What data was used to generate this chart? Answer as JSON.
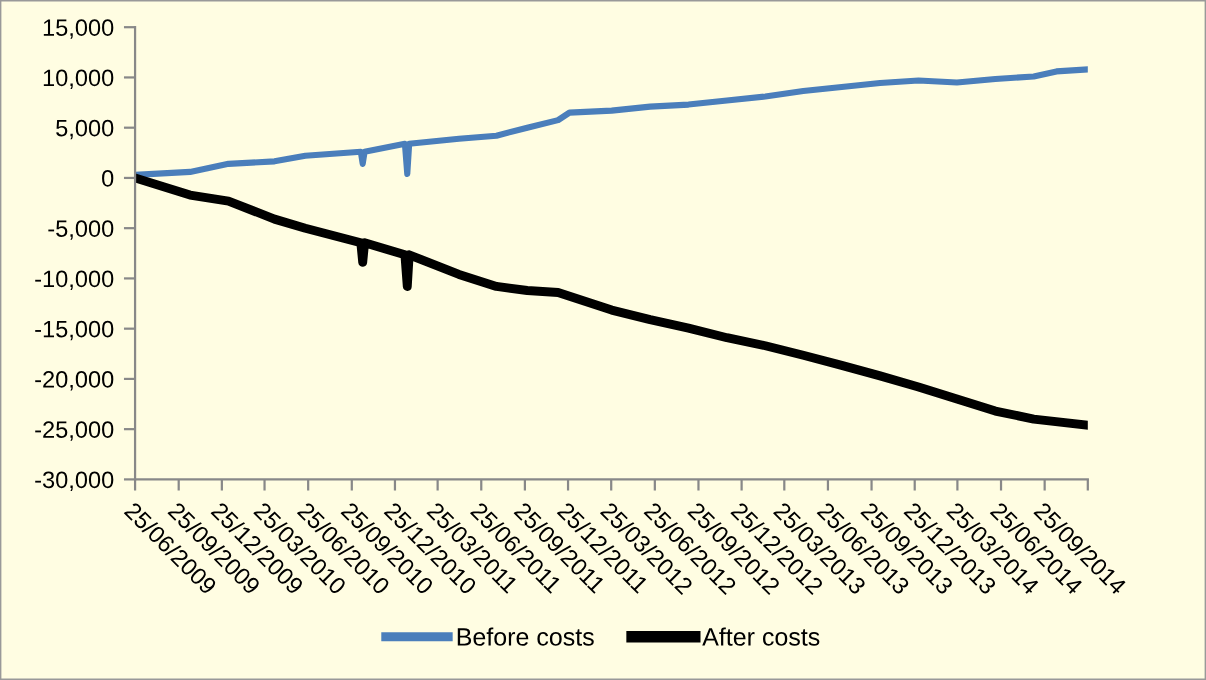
{
  "chart_data": {
    "type": "line",
    "xlim": [
      "2009-06-25",
      "2014-12-25"
    ],
    "xticks": [
      {
        "value": "2009-06-25",
        "label": "25/06/2009"
      },
      {
        "value": "2009-09-25",
        "label": "25/09/2009"
      },
      {
        "value": "2009-12-25",
        "label": "25/12/2009"
      },
      {
        "value": "2010-03-25",
        "label": "25/03/2010"
      },
      {
        "value": "2010-06-25",
        "label": "25/06/2010"
      },
      {
        "value": "2010-09-25",
        "label": "25/09/2010"
      },
      {
        "value": "2010-12-25",
        "label": "25/12/2010"
      },
      {
        "value": "2011-03-25",
        "label": "25/03/2011"
      },
      {
        "value": "2011-06-25",
        "label": "25/06/2011"
      },
      {
        "value": "2011-09-25",
        "label": "25/09/2011"
      },
      {
        "value": "2011-12-25",
        "label": "25/12/2011"
      },
      {
        "value": "2012-03-25",
        "label": "25/03/2012"
      },
      {
        "value": "2012-06-25",
        "label": "25/06/2012"
      },
      {
        "value": "2012-09-25",
        "label": "25/09/2012"
      },
      {
        "value": "2012-12-25",
        "label": "25/12/2012"
      },
      {
        "value": "2013-03-25",
        "label": "25/03/2013"
      },
      {
        "value": "2013-06-25",
        "label": "25/06/2013"
      },
      {
        "value": "2013-09-25",
        "label": "25/09/2013"
      },
      {
        "value": "2013-12-25",
        "label": "25/12/2013"
      },
      {
        "value": "2014-03-25",
        "label": "25/03/2014"
      },
      {
        "value": "2014-06-25",
        "label": "25/06/2014"
      },
      {
        "value": "2014-09-25",
        "label": "25/09/2014"
      },
      {
        "value": "2014-12-25",
        "label": null
      }
    ],
    "ylim": [
      -30000,
      15000
    ],
    "yticks": [
      {
        "value": -30000,
        "label": "-30,000"
      },
      {
        "value": -25000,
        "label": "-25,000"
      },
      {
        "value": -20000,
        "label": "-20,000"
      },
      {
        "value": -15000,
        "label": "-15,000"
      },
      {
        "value": -10000,
        "label": "-10,000"
      },
      {
        "value": -5000,
        "label": "-5,000"
      },
      {
        "value": 0,
        "label": "0"
      },
      {
        "value": 5000,
        "label": "5,000"
      },
      {
        "value": 10000,
        "label": "10,000"
      },
      {
        "value": 15000,
        "label": "15,000"
      }
    ],
    "grid": false,
    "legend": "bottom",
    "marker": "none",
    "line_style": "solid",
    "series": [
      {
        "name": "Before costs",
        "color": "#4a7ebb",
        "x": [
          "2009-06-25",
          "2009-10-19",
          "2010-01-08",
          "2010-04-15",
          "2010-06-19",
          "2010-10-14",
          "2010-10-18",
          "2010-10-22",
          "2011-01-15",
          "2011-01-20",
          "2011-01-24",
          "2011-05-09",
          "2011-07-27",
          "2011-09-30",
          "2011-12-04",
          "2011-12-28",
          "2012-03-26",
          "2012-06-15",
          "2012-09-04",
          "2012-11-24",
          "2013-02-13",
          "2013-05-04",
          "2013-07-24",
          "2013-10-13",
          "2014-01-02",
          "2014-03-24",
          "2014-06-13",
          "2014-09-02",
          "2014-10-20",
          "2014-12-25"
        ],
        "values": [
          300,
          600,
          1400,
          1650,
          2200,
          2600,
          1400,
          2600,
          3400,
          400,
          3400,
          3900,
          4200,
          5000,
          5750,
          6500,
          6700,
          7100,
          7300,
          7700,
          8100,
          8650,
          9050,
          9450,
          9700,
          9500,
          9850,
          10100,
          10600,
          10800
        ]
      },
      {
        "name": "After costs",
        "color": "#000000",
        "x": [
          "2009-06-25",
          "2009-10-19",
          "2010-01-08",
          "2010-04-15",
          "2010-06-19",
          "2010-10-14",
          "2010-10-18",
          "2010-10-22",
          "2011-01-15",
          "2011-01-20",
          "2011-01-24",
          "2011-05-09",
          "2011-07-27",
          "2011-09-30",
          "2011-12-04",
          "2012-03-26",
          "2012-06-15",
          "2012-09-04",
          "2012-11-24",
          "2013-02-13",
          "2013-05-04",
          "2013-07-24",
          "2013-10-13",
          "2014-01-02",
          "2014-03-24",
          "2014-06-13",
          "2014-09-02",
          "2014-12-25"
        ],
        "values": [
          0,
          -1700,
          -2300,
          -4100,
          -5000,
          -6450,
          -8400,
          -6450,
          -7650,
          -10800,
          -7650,
          -9600,
          -10800,
          -11200,
          -11400,
          -13150,
          -14100,
          -14950,
          -15900,
          -16700,
          -17650,
          -18650,
          -19700,
          -20800,
          -22000,
          -23200,
          -24000,
          -24600
        ]
      }
    ]
  }
}
